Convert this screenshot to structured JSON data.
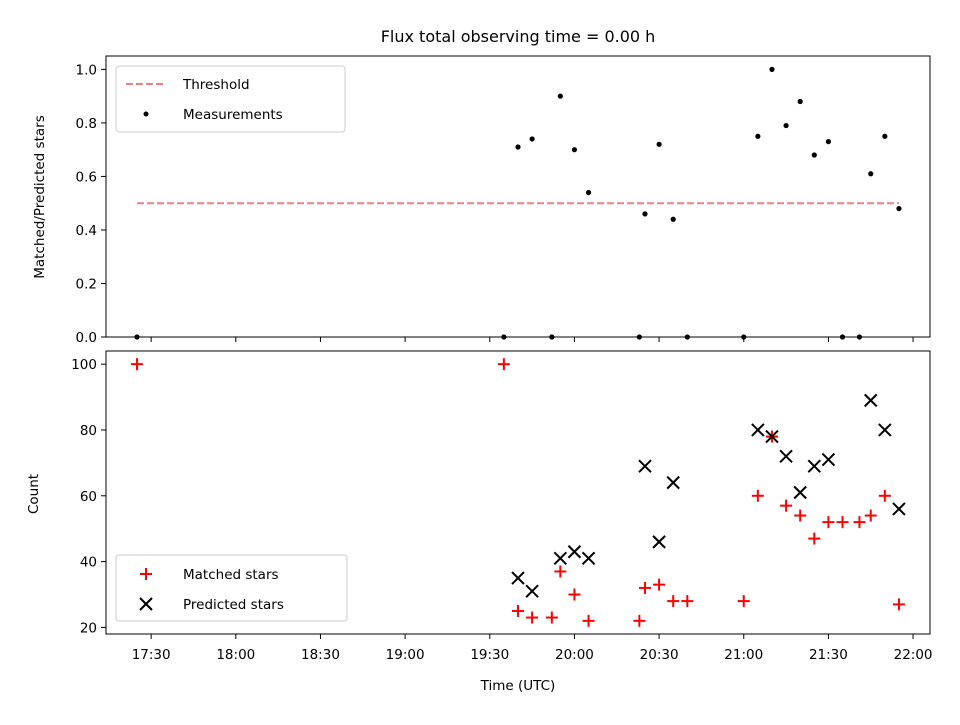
{
  "chart_data": [
    {
      "type": "scatter",
      "title": "Flux total observing time = 0.00 h",
      "xlabel": "",
      "ylabel": "Matched/Predicted stars",
      "ylim": [
        0,
        1.05
      ],
      "xlim": [
        "17:14",
        "22:06"
      ],
      "xticks": [
        "17:30",
        "18:00",
        "18:30",
        "19:00",
        "19:30",
        "20:00",
        "20:30",
        "21:00",
        "21:30",
        "22:00"
      ],
      "ytick_labels": [
        "0.0",
        "0.2",
        "0.4",
        "0.6",
        "0.8",
        "1.0"
      ],
      "legend_position": "upper-left",
      "threshold": {
        "name": "Threshold",
        "color": "#f08080",
        "y": 0.5,
        "x_start": "17:25",
        "x_end": "21:55"
      },
      "series": [
        {
          "name": "Measurements",
          "color": "#000000",
          "points": [
            {
              "x": "17:25",
              "y": 0.0
            },
            {
              "x": "19:35",
              "y": 0.0
            },
            {
              "x": "19:40",
              "y": 0.71
            },
            {
              "x": "19:45",
              "y": 0.74
            },
            {
              "x": "19:52",
              "y": 0.0
            },
            {
              "x": "19:55",
              "y": 0.9
            },
            {
              "x": "20:00",
              "y": 0.7
            },
            {
              "x": "20:05",
              "y": 0.54
            },
            {
              "x": "20:23",
              "y": 0.0
            },
            {
              "x": "20:25",
              "y": 0.46
            },
            {
              "x": "20:30",
              "y": 0.72
            },
            {
              "x": "20:35",
              "y": 0.44
            },
            {
              "x": "20:40",
              "y": 0.0
            },
            {
              "x": "21:00",
              "y": 0.0
            },
            {
              "x": "21:05",
              "y": 0.75
            },
            {
              "x": "21:10",
              "y": 1.0
            },
            {
              "x": "21:15",
              "y": 0.79
            },
            {
              "x": "21:20",
              "y": 0.88
            },
            {
              "x": "21:25",
              "y": 0.68
            },
            {
              "x": "21:30",
              "y": 0.73
            },
            {
              "x": "21:35",
              "y": 0.0
            },
            {
              "x": "21:41",
              "y": 0.0
            },
            {
              "x": "21:45",
              "y": 0.61
            },
            {
              "x": "21:50",
              "y": 0.75
            },
            {
              "x": "21:55",
              "y": 0.48
            }
          ]
        }
      ]
    },
    {
      "type": "scatter",
      "title": "",
      "xlabel": "Time (UTC)",
      "ylabel": "Count",
      "ylim": [
        18,
        104
      ],
      "xlim": [
        "17:14",
        "22:06"
      ],
      "xticks": [
        "17:30",
        "18:00",
        "18:30",
        "19:00",
        "19:30",
        "20:00",
        "20:30",
        "21:00",
        "21:30",
        "22:00"
      ],
      "xtick_labels": [
        "17:30",
        "18:00",
        "18:30",
        "19:00",
        "19:30",
        "20:00",
        "20:30",
        "21:00",
        "21:30",
        "22:00"
      ],
      "ytick_labels": [
        "20",
        "40",
        "60",
        "80",
        "100"
      ],
      "legend_position": "lower-left",
      "series": [
        {
          "name": "Matched stars",
          "marker": "plus",
          "color": "#ff0000",
          "points": [
            {
              "x": "17:25",
              "y": 100
            },
            {
              "x": "19:35",
              "y": 100
            },
            {
              "x": "19:40",
              "y": 25
            },
            {
              "x": "19:45",
              "y": 23
            },
            {
              "x": "19:52",
              "y": 23
            },
            {
              "x": "19:55",
              "y": 37
            },
            {
              "x": "20:00",
              "y": 30
            },
            {
              "x": "20:05",
              "y": 22
            },
            {
              "x": "20:23",
              "y": 22
            },
            {
              "x": "20:25",
              "y": 32
            },
            {
              "x": "20:30",
              "y": 33
            },
            {
              "x": "20:35",
              "y": 28
            },
            {
              "x": "20:40",
              "y": 28
            },
            {
              "x": "21:00",
              "y": 28
            },
            {
              "x": "21:05",
              "y": 60
            },
            {
              "x": "21:10",
              "y": 78
            },
            {
              "x": "21:15",
              "y": 57
            },
            {
              "x": "21:20",
              "y": 54
            },
            {
              "x": "21:25",
              "y": 47
            },
            {
              "x": "21:30",
              "y": 52
            },
            {
              "x": "21:35",
              "y": 52
            },
            {
              "x": "21:41",
              "y": 52
            },
            {
              "x": "21:45",
              "y": 54
            },
            {
              "x": "21:50",
              "y": 60
            },
            {
              "x": "21:55",
              "y": 27
            }
          ]
        },
        {
          "name": "Predicted stars",
          "marker": "x",
          "color": "#000000",
          "points": [
            {
              "x": "19:40",
              "y": 35
            },
            {
              "x": "19:45",
              "y": 31
            },
            {
              "x": "19:55",
              "y": 41
            },
            {
              "x": "20:00",
              "y": 43
            },
            {
              "x": "20:05",
              "y": 41
            },
            {
              "x": "20:25",
              "y": 69
            },
            {
              "x": "20:30",
              "y": 46
            },
            {
              "x": "20:35",
              "y": 64
            },
            {
              "x": "21:05",
              "y": 80
            },
            {
              "x": "21:10",
              "y": 78
            },
            {
              "x": "21:15",
              "y": 72
            },
            {
              "x": "21:20",
              "y": 61
            },
            {
              "x": "21:25",
              "y": 69
            },
            {
              "x": "21:30",
              "y": 71
            },
            {
              "x": "21:45",
              "y": 89
            },
            {
              "x": "21:50",
              "y": 80
            },
            {
              "x": "21:55",
              "y": 56
            }
          ]
        }
      ]
    }
  ]
}
